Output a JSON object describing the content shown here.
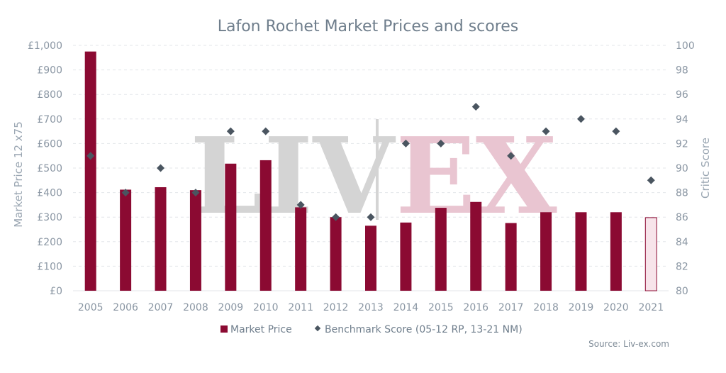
{
  "title": "Lafon Rochet Market Prices and scores",
  "source": "Source: Liv-ex.com",
  "watermark": {
    "left": "LIV",
    "right": "EX"
  },
  "legend": {
    "bar_label": "Market Price",
    "score_label": "Benchmark Score (05-12 RP, 13-21 NM)"
  },
  "colors": {
    "bar": "#8b0a32",
    "bar_light": "#f7e4ea",
    "marker": "#4a5560",
    "grid": "#e3e6ea",
    "watermark_gray": "#d4d4d4",
    "watermark_pink": "#e9c5d1"
  },
  "chart_data": {
    "type": "bar",
    "title": "Lafon Rochet Market Prices and scores",
    "categories": [
      "2005",
      "2006",
      "2007",
      "2008",
      "2009",
      "2010",
      "2011",
      "2012",
      "2013",
      "2014",
      "2015",
      "2016",
      "2017",
      "2018",
      "2019",
      "2020",
      "2021"
    ],
    "ylabel": "Market Price 12 x75",
    "y2label": "Critic Score",
    "ylim": [
      0,
      1000
    ],
    "y2lim": [
      80,
      100
    ],
    "yticks": [
      "£0",
      "£100",
      "£200",
      "£300",
      "£400",
      "£500",
      "£600",
      "£700",
      "£800",
      "£900",
      "£1,000"
    ],
    "y2ticks": [
      "80",
      "82",
      "84",
      "86",
      "88",
      "90",
      "92",
      "94",
      "96",
      "98",
      "100"
    ],
    "series": [
      {
        "name": "Market Price",
        "type": "bar",
        "axis": "left",
        "values": [
          975,
          412,
          422,
          410,
          518,
          532,
          340,
          300,
          265,
          278,
          338,
          362,
          276,
          320,
          320,
          320,
          298
        ],
        "highlight_last": true
      },
      {
        "name": "Benchmark Score (05-12 RP, 13-21 NM)",
        "type": "scatter",
        "axis": "right",
        "values": [
          91,
          88,
          90,
          88,
          93,
          93,
          87,
          86,
          86,
          92,
          92,
          95,
          91,
          93,
          94,
          93,
          89
        ]
      }
    ],
    "grid": true,
    "legend_position": "bottom-center"
  }
}
